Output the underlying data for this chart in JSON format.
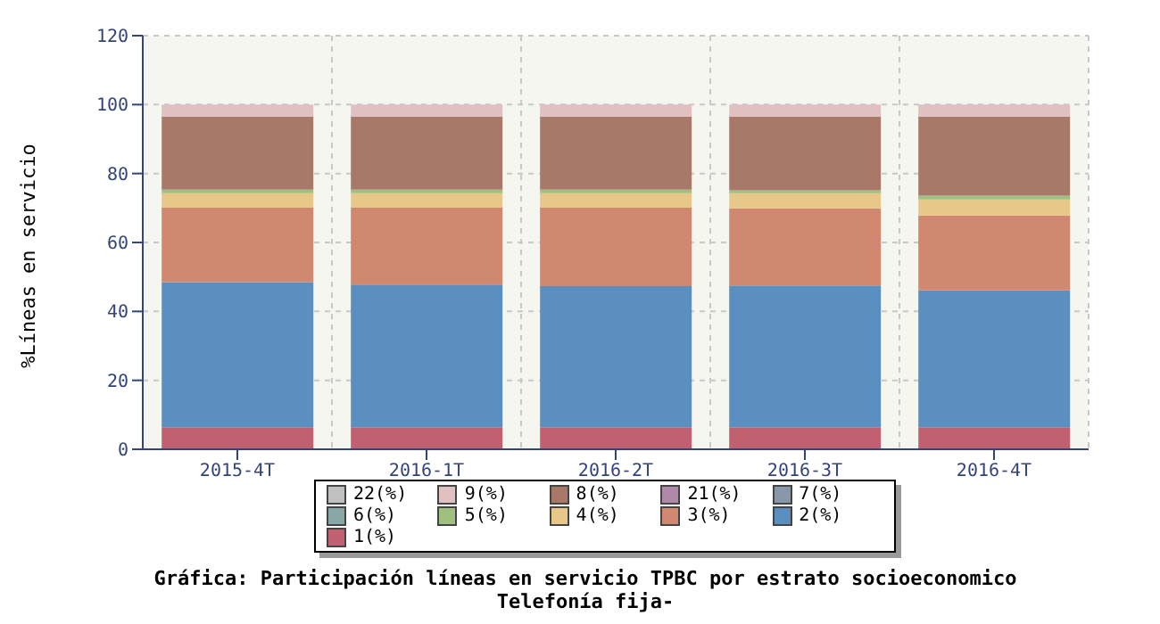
{
  "chart_data": {
    "type": "bar",
    "stacked": true,
    "title": "Gráfica: Participación líneas en servicio TPBC por estrato socioeconomico",
    "subtitle": "Telefonía fija-",
    "ylabel": "%Líneas en servicio",
    "categories": [
      "2015-4T",
      "2016-1T",
      "2016-2T",
      "2016-3T",
      "2016-4T"
    ],
    "series": [
      {
        "name": "1(%)",
        "color": "#c06070",
        "values": [
          6.4,
          6.4,
          6.4,
          6.4,
          6.4
        ]
      },
      {
        "name": "2(%)",
        "color": "#5b8fbf",
        "values": [
          42.1,
          41.4,
          40.9,
          41.1,
          39.7
        ]
      },
      {
        "name": "3(%)",
        "color": "#d08870",
        "values": [
          21.6,
          22.3,
          22.8,
          22.4,
          21.7
        ]
      },
      {
        "name": "4(%)",
        "color": "#e8c888",
        "values": [
          4.2,
          4.2,
          4.2,
          4.4,
          4.7
        ]
      },
      {
        "name": "5(%)",
        "color": "#a0c080",
        "values": [
          1.0,
          1.0,
          1.0,
          0.8,
          1.1
        ]
      },
      {
        "name": "6(%)",
        "color": "#88a8a8",
        "values": [
          0,
          0,
          0,
          0,
          0
        ]
      },
      {
        "name": "7(%)",
        "color": "#8898a8",
        "values": [
          0,
          0,
          0,
          0,
          0
        ]
      },
      {
        "name": "21(%)",
        "color": "#b088a8",
        "values": [
          0,
          0,
          0,
          0,
          0
        ]
      },
      {
        "name": "8(%)",
        "color": "#a87868",
        "values": [
          21.2,
          21.2,
          21.2,
          21.4,
          22.9
        ]
      },
      {
        "name": "9(%)",
        "color": "#e0c0c0",
        "values": [
          3.5,
          3.5,
          3.5,
          3.5,
          3.5
        ]
      },
      {
        "name": "22(%)",
        "color": "#c0c0c0",
        "values": [
          0,
          0,
          0,
          0,
          0
        ]
      }
    ],
    "ylim": [
      0,
      120
    ],
    "yticks": [
      0,
      20,
      40,
      60,
      80,
      100,
      120
    ],
    "grid": true,
    "legend": "bottom"
  }
}
